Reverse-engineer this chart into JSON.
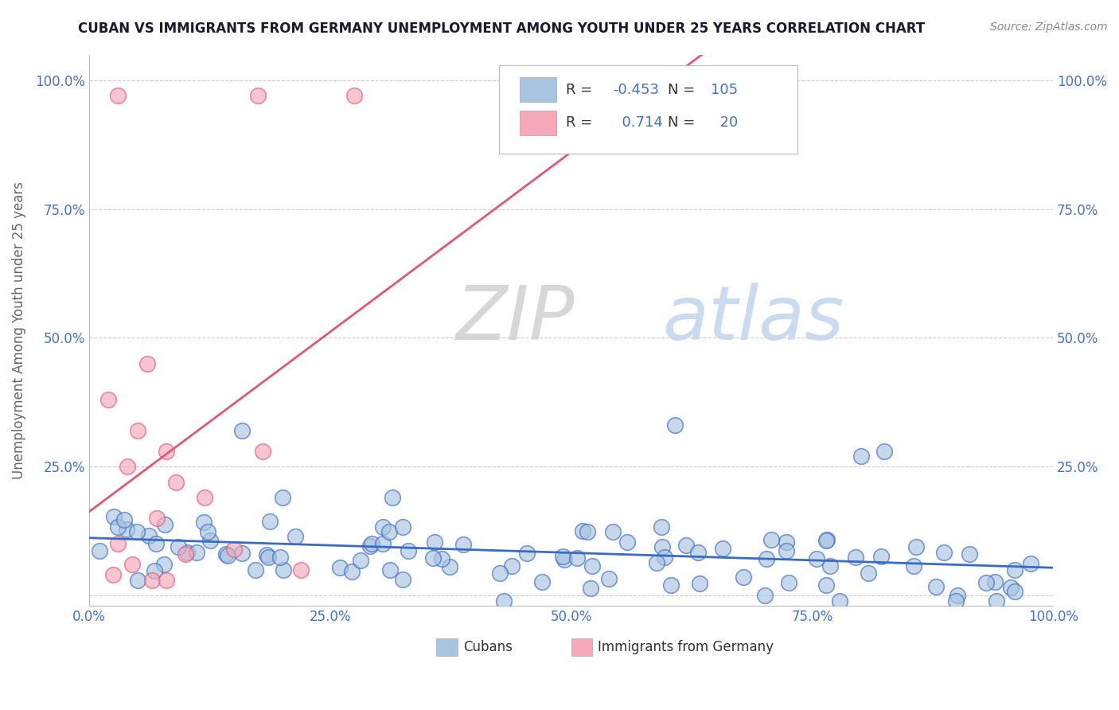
{
  "title": "CUBAN VS IMMIGRANTS FROM GERMANY UNEMPLOYMENT AMONG YOUTH UNDER 25 YEARS CORRELATION CHART",
  "source": "Source: ZipAtlas.com",
  "ylabel": "Unemployment Among Youth under 25 years",
  "xlim": [
    0,
    1.0
  ],
  "ylim": [
    -0.02,
    1.05
  ],
  "xticks": [
    0.0,
    0.25,
    0.5,
    0.75,
    1.0
  ],
  "xtick_labels": [
    "0.0%",
    "25.0%",
    "50.0%",
    "75.0%",
    "100.0%"
  ],
  "yticks": [
    0.0,
    0.25,
    0.5,
    0.75,
    1.0
  ],
  "ytick_labels": [
    "",
    "25.0%",
    "50.0%",
    "75.0%",
    "100.0%"
  ],
  "cubans_color": "#a8c4e0",
  "germany_color": "#f4a8b8",
  "cubans_line_color": "#3a6bc4",
  "germany_line_color": "#e05878",
  "cubans_R": -0.453,
  "cubans_N": 105,
  "germany_R": 0.714,
  "germany_N": 20,
  "legend_label_cubans": "Cubans",
  "legend_label_germany": "Immigrants from Germany",
  "watermark_zip": "ZIP",
  "watermark_atlas": "atlas",
  "watermark_zip_color": "#d0d0d0",
  "watermark_atlas_color": "#c0d4ef",
  "background_color": "#ffffff",
  "title_color": "#1a1a2e",
  "axis_label_color": "#666666",
  "grid_color": "#cccccc",
  "tick_label_color": "#4472c4",
  "source_color": "#888888"
}
